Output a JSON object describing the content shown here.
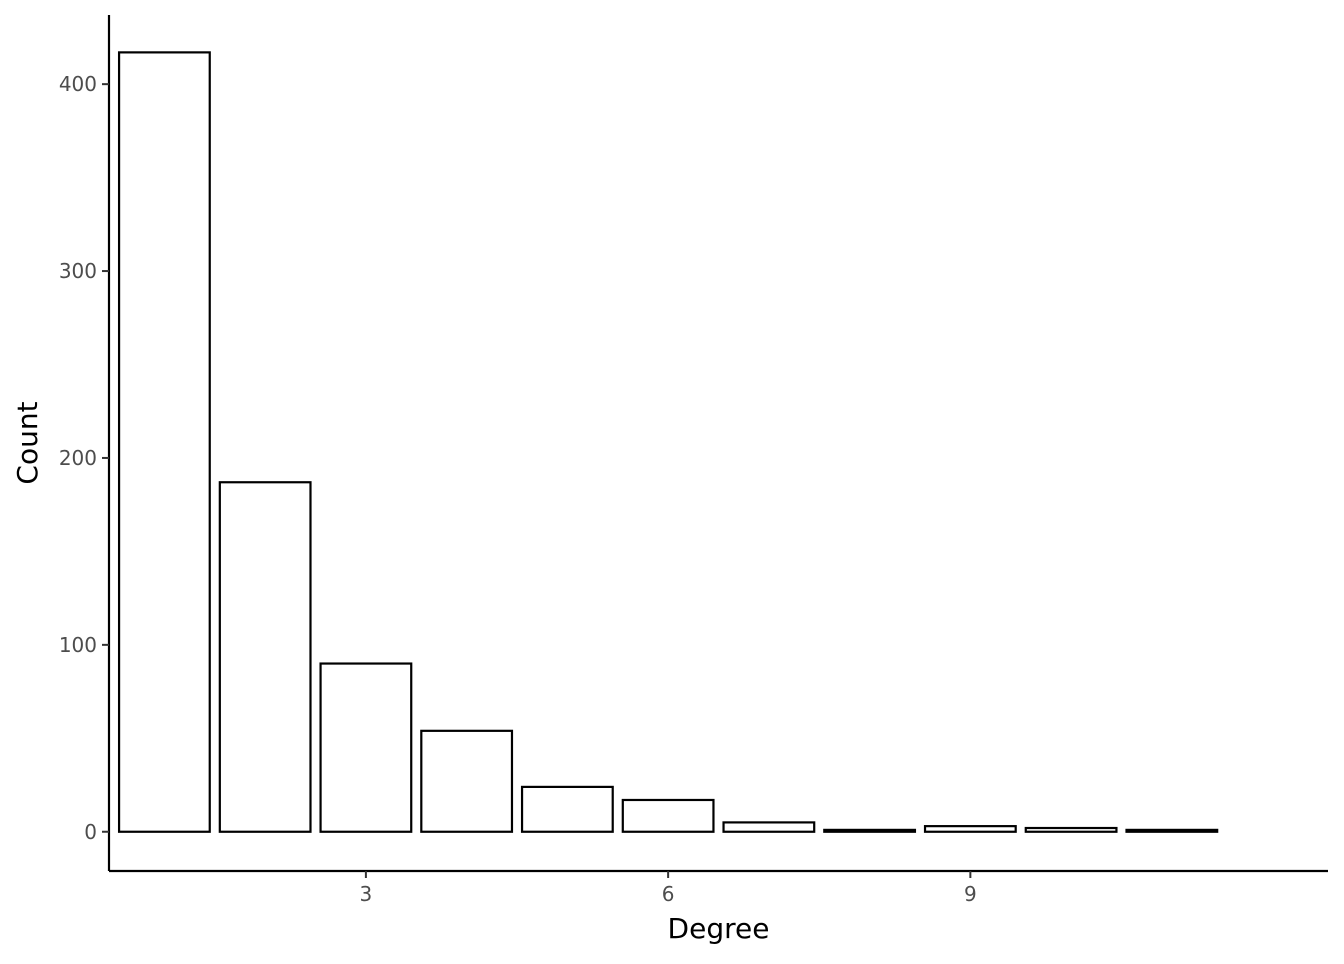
{
  "chart_data": {
    "type": "bar",
    "x": [
      1,
      2,
      3,
      4,
      5,
      6,
      7,
      8,
      9,
      10,
      11
    ],
    "values": [
      417,
      187,
      90,
      54,
      24,
      17,
      5,
      1,
      3,
      2,
      1
    ],
    "xlabel": "Degree",
    "ylabel": "Count",
    "xlim": [
      0.45,
      12.55
    ],
    "ylim": [
      -21,
      437
    ],
    "x_ticks": [
      3,
      6,
      9
    ],
    "y_ticks": [
      0,
      100,
      200,
      300,
      400
    ],
    "x_tick_labels": [
      "3",
      "6",
      "9"
    ],
    "y_tick_labels": [
      "0",
      "100",
      "200",
      "300",
      "400"
    ],
    "grid": false,
    "legend": "none",
    "bar_fill": "#ffffff",
    "bar_stroke": "#000000"
  }
}
